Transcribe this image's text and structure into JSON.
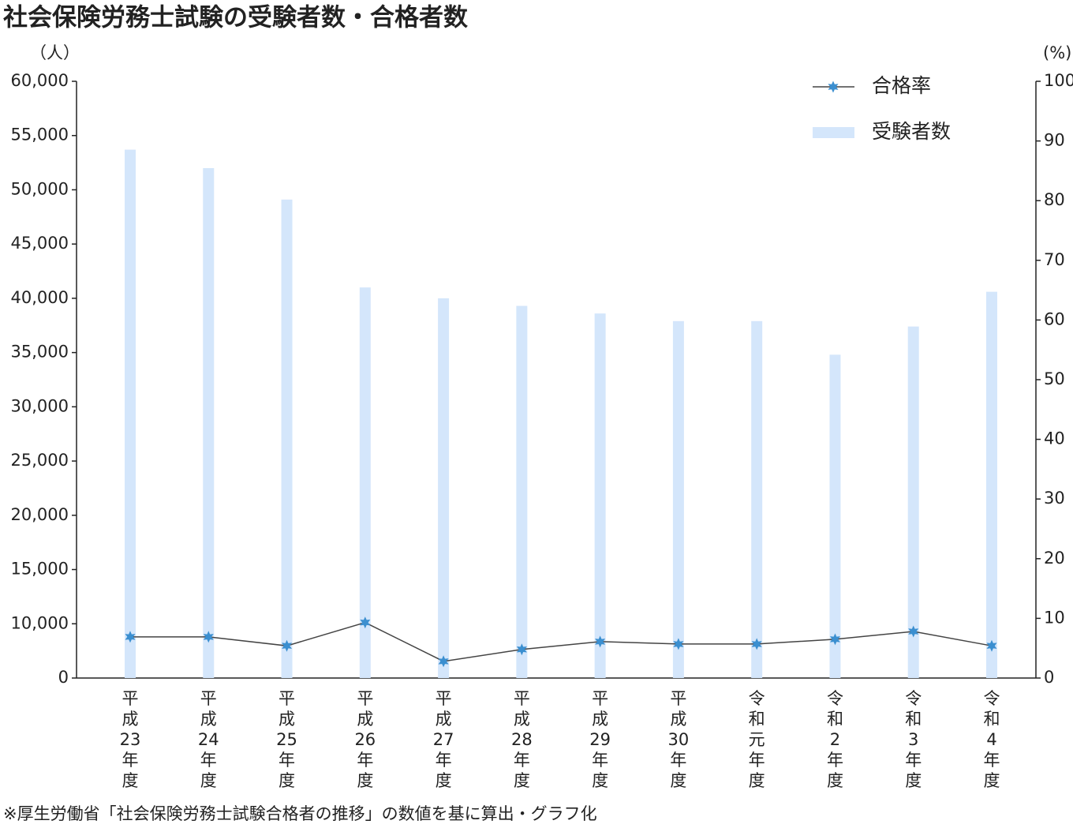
{
  "chart_data": {
    "type": "bar_line",
    "title": "社会保険労務士試験の受験者数・合格者数",
    "y_unit": "（人）",
    "y2_unit": "(%)",
    "note": "※厚生労働省「社会保険労務士試験合格者の推移」の数値を基に算出・グラフ化",
    "categories": [
      "平成23年度",
      "平成24年度",
      "平成25年度",
      "平成26年度",
      "平成27年度",
      "平成28年度",
      "平成29年度",
      "平成30年度",
      "令和元年度",
      "令和2年度",
      "令和3年度",
      "令和4年度"
    ],
    "series": [
      {
        "name": "合格率",
        "type": "line",
        "axis": "y2",
        "color": "#3b8fd0",
        "line_color": "#444444",
        "values": [
          6.9,
          6.9,
          5.4,
          9.3,
          2.8,
          4.8,
          6.1,
          5.7,
          5.7,
          6.5,
          7.8,
          5.4
        ]
      },
      {
        "name": "受験者数",
        "type": "bar",
        "color": "#d4e6fb",
        "values": [
          53700,
          52000,
          49100,
          41000,
          40000,
          39300,
          38600,
          37900,
          37900,
          34800,
          37400,
          40600
        ]
      }
    ],
    "ylim": [
      0,
      60000
    ],
    "yticks": [
      0,
      {
        "value": 10000,
        "label": "10,000"
      },
      {
        "value": 15000,
        "label": "15,000"
      },
      {
        "value": 20000,
        "label": "20,000"
      },
      {
        "value": 25000,
        "label": "25,000"
      },
      {
        "value": 30000,
        "label": "30,000"
      },
      {
        "value": 35000,
        "label": "35,000"
      },
      {
        "value": 40000,
        "label": "40,000"
      },
      {
        "value": 45000,
        "label": "45,000"
      },
      {
        "value": 50000,
        "label": "50,000"
      },
      {
        "value": 55000,
        "label": "55,000"
      },
      {
        "value": 60000,
        "label": "60,000"
      }
    ],
    "y2lim": [
      0,
      100
    ],
    "y2ticks": [
      0,
      10,
      20,
      30,
      40,
      50,
      60,
      70,
      80,
      90,
      100
    ],
    "legend": "top-right"
  }
}
